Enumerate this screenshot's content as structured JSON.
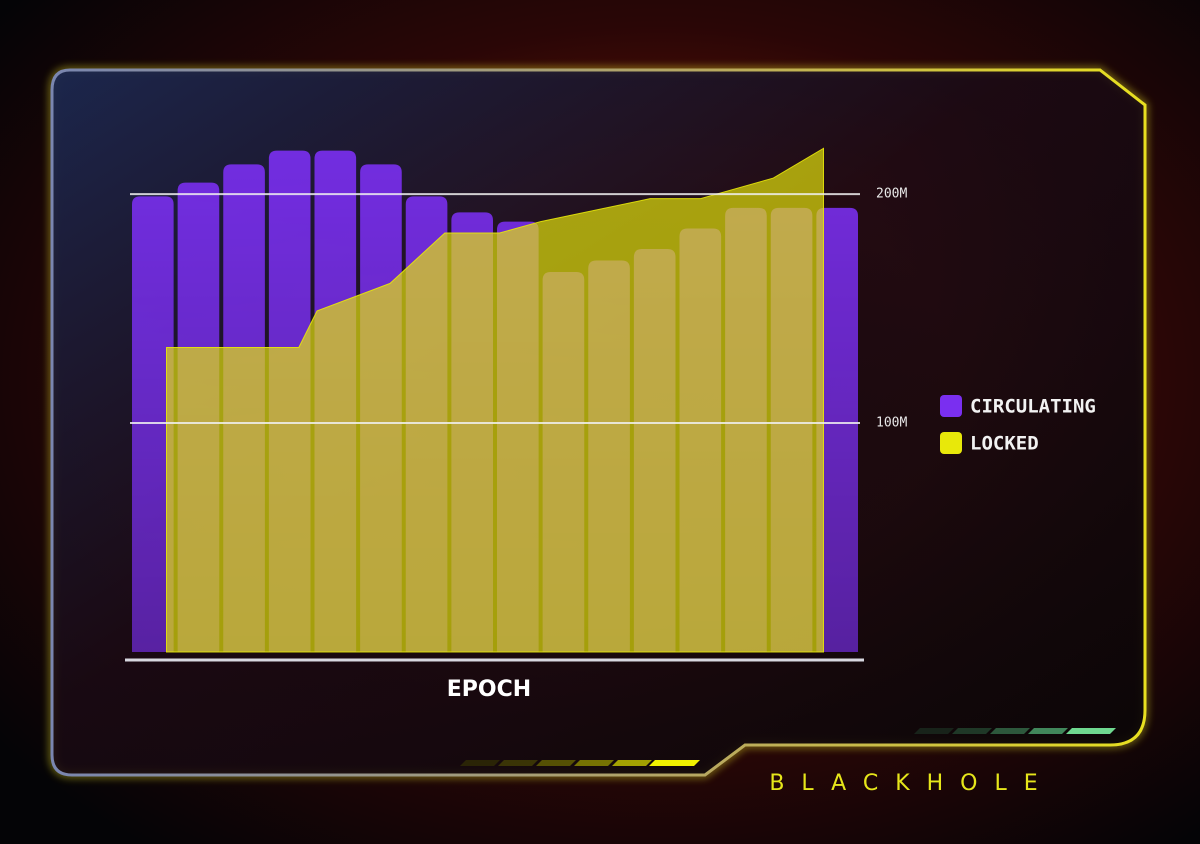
{
  "chart_data": {
    "type": "bar",
    "xlabel": "EPOCH",
    "categories": [
      null,
      null,
      null,
      null,
      null,
      null,
      null,
      null,
      null,
      null,
      null,
      null,
      null,
      null,
      null,
      null
    ],
    "xlim": [
      -0.5,
      15.5
    ],
    "ylim": [
      0,
      228
    ],
    "yticks": [
      {
        "value": 100,
        "label": "100M"
      },
      {
        "value": 200,
        "label": "200M"
      }
    ],
    "grid": true,
    "legend": "right",
    "series": [
      {
        "name": "CIRCULATING",
        "color": "#7a2ff0",
        "values": [
          199,
          205,
          213,
          219,
          219,
          213,
          199,
          192,
          188,
          166,
          171,
          176,
          185,
          194,
          194,
          194
        ]
      },
      {
        "name": "LOCKED",
        "type": "area",
        "color": "#e8e80a",
        "x": [
          0.3,
          3.2,
          3.6,
          5.2,
          6.4,
          7.6,
          8.5,
          10.9,
          12.0,
          13.6,
          14.7
        ],
        "values": [
          133,
          133,
          149,
          161,
          183,
          183,
          188,
          198,
          198,
          207,
          220
        ]
      }
    ]
  },
  "brand": "BLACKHOLE"
}
